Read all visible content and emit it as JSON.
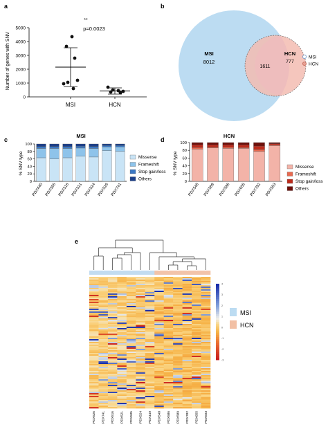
{
  "panels": {
    "a": {
      "letter": "a",
      "significance": "**",
      "pvalue": "p=0.0023",
      "ylabel": "Number of genes with SNV",
      "yticks": [
        "0",
        "1000",
        "2000",
        "3000",
        "4000",
        "5000"
      ]
    },
    "b": {
      "letter": "b",
      "msi_label": "MSI",
      "msi_only": "8012",
      "overlap": "1611",
      "hcn_label": "HCN",
      "hcn_only": "777",
      "legend": [
        "MSI",
        "HCN"
      ]
    },
    "c": {
      "letter": "c",
      "title": "MSI",
      "ylabel": "% SNV type",
      "yticks": [
        "0",
        "20",
        "40",
        "60",
        "80",
        "100"
      ]
    },
    "d": {
      "letter": "d",
      "title": "HCN",
      "ylabel": "% SNV type",
      "yticks": [
        "0",
        "20",
        "40",
        "60",
        "80",
        "100"
      ]
    },
    "e": {
      "letter": "e",
      "legend": [
        "MSI",
        "HCN"
      ],
      "scale_ticks": [
        "4",
        "3",
        "2",
        "1",
        "0",
        "-1",
        "-2",
        "-3"
      ],
      "columns": [
        "PDX526",
        "PDX741",
        "PDX516",
        "PDX521",
        "PDX505",
        "PDX524",
        "PDX440",
        "PDX548",
        "PDX586",
        "PDX589",
        "PDX782",
        "PDX655",
        "PDX503"
      ]
    }
  },
  "colors": {
    "msi_light": "#bcdcf2",
    "hcn_light": "#f4b9ad",
    "missense_msi": "#c9e4f6",
    "frameshift_msi": "#8ec3ea",
    "stop_msi": "#3b78c4",
    "others_msi": "#1c3f8a",
    "missense_hcn": "#f3b3a8",
    "frameshift_hcn": "#e86a50",
    "stop_hcn": "#bd2b1c",
    "others_hcn": "#6e0f0a"
  },
  "chart_data": [
    {
      "panel": "a",
      "type": "scatter",
      "categories": [
        "MSI",
        "HCN"
      ],
      "ylabel": "Number of genes with SNV",
      "ylim": [
        0,
        5000
      ],
      "series": [
        {
          "name": "MSI",
          "values": [
            4350,
            3650,
            2800,
            1200,
            950,
            1050,
            600
          ],
          "mean": 2150,
          "sd_low": 750,
          "sd_high": 3550
        },
        {
          "name": "HCN",
          "values": [
            700,
            500,
            450,
            400,
            350,
            300
          ],
          "mean": 430,
          "sd_low": 200,
          "sd_high": 650
        }
      ]
    },
    {
      "panel": "c",
      "type": "bar",
      "stacked": true,
      "title": "MSI",
      "ylabel": "% SNV type",
      "ylim": [
        0,
        100
      ],
      "categories": [
        "PDX440",
        "PDX505",
        "PDX516",
        "PDX521",
        "PDX524",
        "PDX526",
        "PDX741"
      ],
      "series": [
        {
          "name": "Missense",
          "values": [
            63,
            60,
            63,
            67,
            65,
            82,
            80
          ]
        },
        {
          "name": "Frameshift",
          "values": [
            25,
            28,
            25,
            22,
            23,
            10,
            12
          ]
        },
        {
          "name": "Stop gain/loss",
          "values": [
            5,
            5,
            5,
            5,
            5,
            4,
            4
          ]
        },
        {
          "name": "Others",
          "values": [
            7,
            7,
            7,
            6,
            7,
            4,
            4
          ]
        }
      ]
    },
    {
      "panel": "d",
      "type": "bar",
      "stacked": true,
      "title": "HCN",
      "ylabel": "% SNV type",
      "ylim": [
        0,
        100
      ],
      "categories": [
        "PDX548",
        "PDX589",
        "PDX586",
        "PDX655",
        "PDX782",
        "PDX503"
      ],
      "series": [
        {
          "name": "Missense",
          "values": [
            83,
            86,
            85,
            85,
            77,
            92
          ]
        },
        {
          "name": "Frameshift",
          "values": [
            4,
            2,
            3,
            2,
            5,
            2
          ]
        },
        {
          "name": "Stop gain/loss",
          "values": [
            7,
            6,
            6,
            7,
            9,
            3
          ]
        },
        {
          "name": "Others",
          "values": [
            6,
            6,
            6,
            6,
            9,
            3
          ]
        }
      ]
    },
    {
      "panel": "e",
      "type": "heatmap",
      "columns": [
        "PDX526",
        "PDX741",
        "PDX516",
        "PDX521",
        "PDX505",
        "PDX524",
        "PDX440",
        "PDX548",
        "PDX586",
        "PDX589",
        "PDX782",
        "PDX655",
        "PDX503"
      ],
      "groups": [
        "MSI",
        "MSI",
        "MSI",
        "MSI",
        "MSI",
        "MSI",
        "MSI",
        "HCN",
        "HCN",
        "HCN",
        "HCN",
        "HCN",
        "HCN"
      ],
      "value_range": [
        -3,
        4
      ]
    }
  ]
}
